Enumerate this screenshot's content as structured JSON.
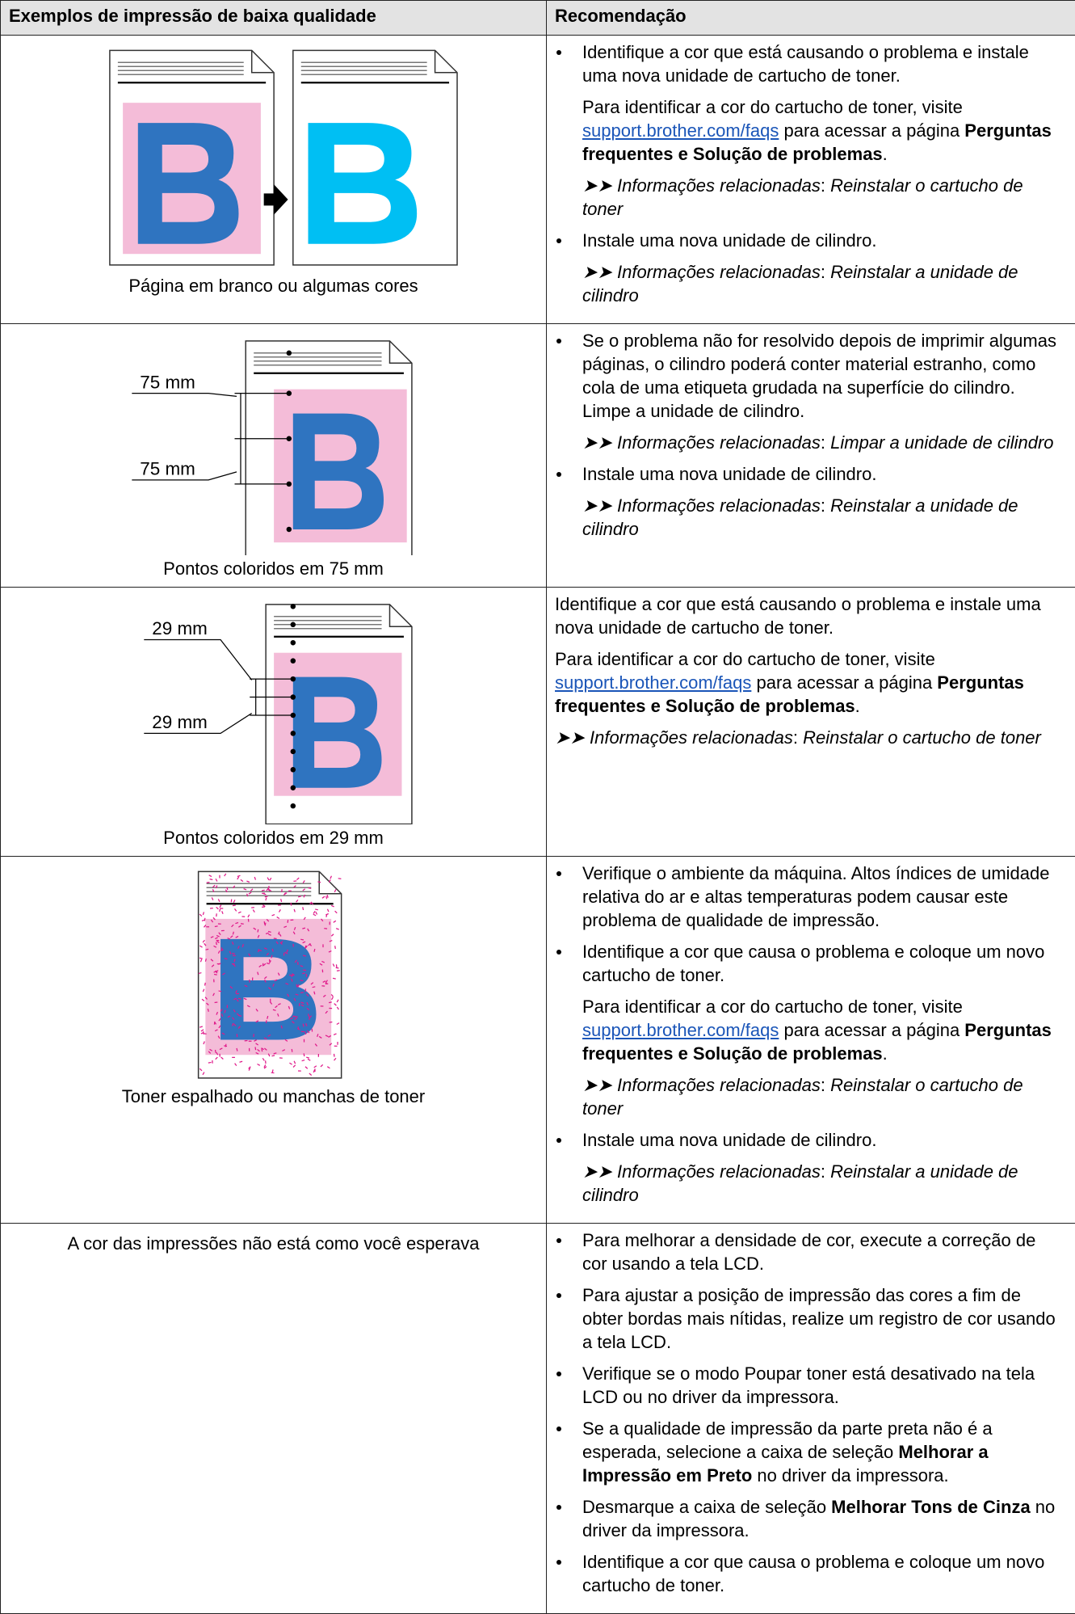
{
  "header": {
    "col1": "Exemplos de impressão de baixa qualidade",
    "col2": "Recomendação"
  },
  "rows": [
    {
      "caption": "Página em branco ou algumas cores",
      "items": [
        [
          [
            "Identifique a cor que está causando o problema e instale uma nova unidade de cartucho de toner."
          ],
          [
            "Para identificar a cor do cartucho de toner, visite ",
            "support.brother.com/faqs",
            " para acessar a página ",
            "Perguntas frequentes e Solução de problemas",
            "."
          ],
          [
            "➤➤ Informações relacionadas",
            ": ",
            "Reinstalar o cartucho de toner"
          ]
        ],
        [
          [
            "Instale uma nova unidade de cilindro."
          ],
          [
            "➤➤ Informações relacionadas",
            ": ",
            "Reinstalar a unidade de cilindro"
          ]
        ]
      ]
    },
    {
      "caption": "Pontos coloridos em 75 mm",
      "labels": [
        "75 mm",
        "75 mm"
      ],
      "items": [
        [
          [
            "Se o problema não for resolvido depois de imprimir algumas páginas, o cilindro poderá conter material estranho, como cola de uma etiqueta grudada na superfície do cilindro. Limpe a unidade de cilindro."
          ],
          [
            "➤➤ Informações relacionadas",
            ": ",
            "Limpar a unidade de cilindro"
          ]
        ],
        [
          [
            "Instale uma nova unidade de cilindro."
          ],
          [
            "➤➤ Informações relacionadas",
            ": ",
            "Reinstalar a unidade de cilindro"
          ]
        ]
      ]
    },
    {
      "caption": "Pontos coloridos em 29 mm",
      "labels": [
        "29 mm",
        "29 mm"
      ],
      "paragraphs": [
        [
          "Identifique a cor que está causando o problema e instale uma nova unidade de cartucho de toner."
        ],
        [
          "Para identificar a cor do cartucho de toner, visite ",
          "support.brother.com/faqs",
          " para acessar a página ",
          "Perguntas frequentes e Solução de problemas",
          "."
        ],
        [
          "➤➤ Informações relacionadas",
          ": ",
          "Reinstalar o cartucho de toner"
        ]
      ]
    },
    {
      "caption": "Toner espalhado ou manchas de toner",
      "items": [
        [
          [
            "Verifique o ambiente da máquina. Altos índices de umidade relativa do ar e altas temperaturas podem causar este problema de qualidade de impressão."
          ]
        ],
        [
          [
            "Identifique a cor que causa o problema e coloque um novo cartucho de toner."
          ],
          [
            "Para identificar a cor do cartucho de toner, visite ",
            "support.brother.com/faqs",
            " para acessar a página ",
            "Perguntas frequentes e Solução de problemas",
            "."
          ],
          [
            "➤➤ Informações relacionadas",
            ": ",
            "Reinstalar o cartucho de toner"
          ]
        ],
        [
          [
            "Instale uma nova unidade de cilindro."
          ],
          [
            "➤➤ Informações relacionadas",
            ": ",
            "Reinstalar a unidade de cilindro"
          ]
        ]
      ]
    },
    {
      "caption": "A cor das impressões não está como você esperava",
      "items": [
        [
          [
            "Para melhorar a densidade de cor, execute a correção de cor usando a tela LCD."
          ]
        ],
        [
          [
            "Para ajustar a posição de impressão das cores a fim de obter bordas mais nítidas, realize um registro de cor usando a tela LCD."
          ]
        ],
        [
          [
            "Verifique se o modo Poupar toner está desativado na tela LCD ou no driver da impressora."
          ]
        ],
        [
          [
            "Se a qualidade de impressão da parte preta não é a esperada, selecione a caixa de seleção ",
            "Melhorar a Impressão em Preto",
            " no driver da impressora."
          ]
        ],
        [
          [
            "Desmarque a caixa de seleção ",
            "Melhorar Tons de Cinza",
            " no driver da impressora."
          ]
        ],
        [
          [
            "Identifique a cor que causa o problema e coloque um novo cartucho de toner."
          ]
        ]
      ]
    }
  ]
}
